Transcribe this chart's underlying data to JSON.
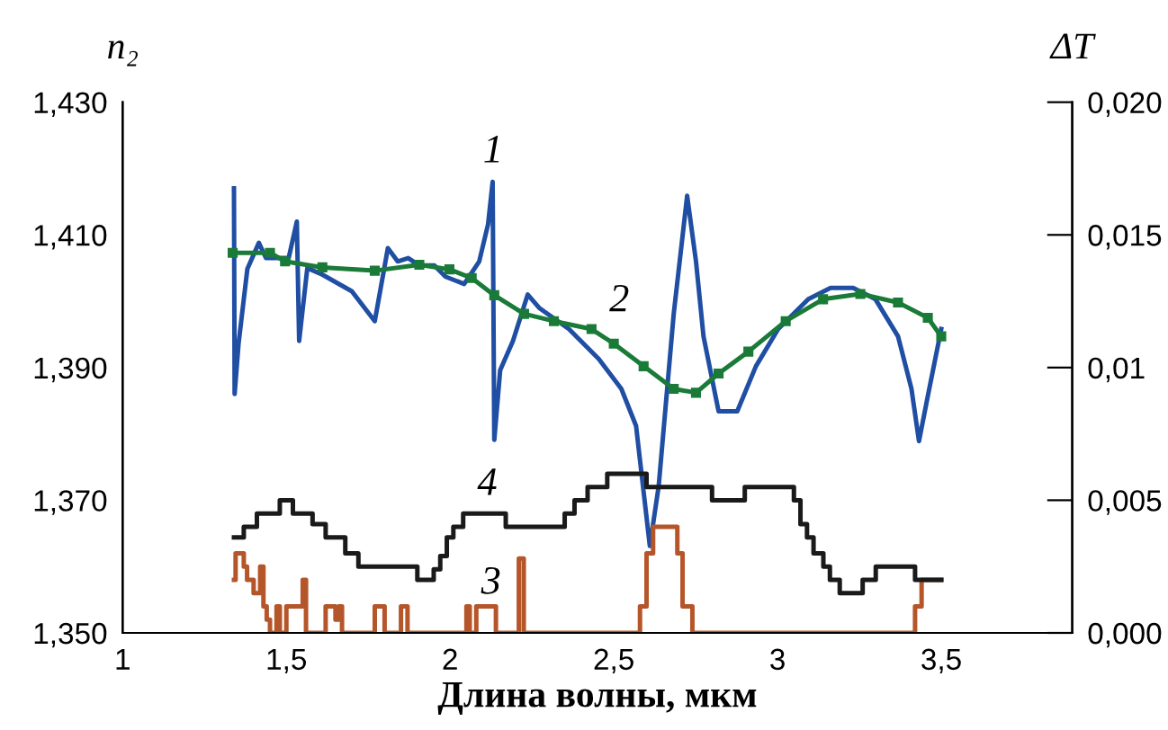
{
  "chart_data": {
    "type": "line",
    "xlabel": "Длина волны, мкм",
    "ylabel": "n₂",
    "y2label": "ΔT",
    "xlim": [
      1,
      3.9
    ],
    "xticks": [
      1,
      {
        "value": 1.5,
        "label": "1,5"
      },
      2,
      {
        "value": 2.5,
        "label": "2,5"
      },
      3,
      {
        "value": 3.5,
        "label": "3,5"
      }
    ],
    "ylim": [
      1.35,
      1.43
    ],
    "yticks": [
      {
        "value": 1.35,
        "label": "1,350"
      },
      {
        "value": 1.37,
        "label": "1,370"
      },
      {
        "value": 1.39,
        "label": "1,390"
      },
      {
        "value": 1.41,
        "label": "1,410"
      },
      {
        "value": 1.43,
        "label": "1,430"
      }
    ],
    "y2lim": [
      0,
      0.02
    ],
    "y2ticks": [
      {
        "value": 0,
        "label": "0,000"
      },
      {
        "value": 0.005,
        "label": "0,005"
      },
      {
        "value": 0.01,
        "label": "0,01"
      },
      {
        "value": 0.015,
        "label": "0,015"
      },
      {
        "value": 0.02,
        "label": "0,020"
      }
    ],
    "grid": false,
    "legend": false,
    "series": [
      {
        "name": "1",
        "color": "#1f4ea3",
        "x": [
          1.34,
          1.342,
          1.354,
          1.381,
          1.416,
          1.438,
          1.507,
          1.532,
          1.539,
          1.564,
          1.61,
          1.7,
          1.77,
          1.81,
          1.84,
          1.872,
          1.906,
          1.952,
          1.986,
          2.043,
          2.089,
          2.116,
          2.13,
          2.135,
          2.153,
          2.192,
          2.237,
          2.272,
          2.363,
          2.454,
          2.523,
          2.568,
          2.61,
          2.637,
          2.683,
          2.724,
          2.751,
          2.774,
          2.82,
          2.877,
          2.934,
          3.002,
          3.094,
          3.162,
          3.231,
          3.299,
          3.368,
          3.409,
          3.432,
          3.459,
          3.5
        ],
        "values": [
          1.417,
          1.386,
          1.3936,
          1.4049,
          1.4088,
          1.4065,
          1.4065,
          1.412,
          1.394,
          1.405,
          1.404,
          1.4015,
          1.397,
          1.408,
          1.406,
          1.4065,
          1.4054,
          1.4054,
          1.4037,
          1.4026,
          1.406,
          1.4116,
          1.418,
          1.3791,
          1.3896,
          1.394,
          1.401,
          1.399,
          1.3958,
          1.3913,
          1.3868,
          1.3812,
          1.3631,
          1.3721,
          1.3981,
          1.4159,
          1.406,
          1.3947,
          1.3834,
          1.3834,
          1.3902,
          1.3958,
          1.4003,
          1.402,
          1.402,
          1.4003,
          1.3947,
          1.3868,
          1.3789,
          1.3857,
          1.3958
        ]
      },
      {
        "name": "2",
        "color": "#1a7a38",
        "marker": "square",
        "x": [
          1.336,
          1.45,
          1.496,
          1.61,
          1.77,
          1.906,
          1.998,
          2.066,
          2.135,
          2.226,
          2.317,
          2.432,
          2.5,
          2.591,
          2.683,
          2.751,
          2.82,
          2.911,
          3.025,
          3.139,
          3.253,
          3.368,
          3.459,
          3.5
        ],
        "values": [
          1.4073,
          1.4073,
          1.406,
          1.4051,
          1.4046,
          1.4055,
          1.4048,
          1.4035,
          1.4009,
          1.3981,
          1.397,
          1.3958,
          1.3936,
          1.3902,
          1.3868,
          1.3862,
          1.3891,
          1.3924,
          1.397,
          1.4003,
          1.4011,
          1.3998,
          1.3975,
          1.3947
        ]
      },
      {
        "name": "3",
        "color": "#b5562a",
        "type": "step",
        "axis": "y2",
        "x": [
          1.34,
          1.345,
          1.37,
          1.38,
          1.4,
          1.42,
          1.43,
          1.44,
          1.45,
          1.47,
          1.48,
          1.5,
          1.55,
          1.56,
          1.62,
          1.65,
          1.66,
          1.67,
          1.77,
          1.8,
          1.85,
          1.87,
          2.05,
          2.06,
          2.08,
          2.14,
          2.21,
          2.225,
          2.58,
          2.6,
          2.62,
          2.694,
          2.71,
          2.74,
          3.42,
          3.44,
          3.5
        ],
        "values": [
          0.002,
          0.003,
          0.0025,
          0.002,
          0.0015,
          0.0025,
          0.001,
          0.0005,
          0,
          0.001,
          0,
          0.001,
          0.002,
          0,
          0.001,
          0.0005,
          0.001,
          0,
          0.001,
          0,
          0.001,
          0,
          0.001,
          0,
          0.001,
          0,
          0.0028,
          0,
          0.001,
          0.003,
          0.004,
          0.003,
          0.001,
          0,
          0.001,
          0.002,
          0.002
        ]
      },
      {
        "name": "4",
        "color": "#1a1a1a",
        "type": "step",
        "axis": "y2",
        "x": [
          1.34,
          1.37,
          1.41,
          1.48,
          1.52,
          1.58,
          1.62,
          1.68,
          1.72,
          1.9,
          1.95,
          1.97,
          1.99,
          2.01,
          2.04,
          2.17,
          2.35,
          2.38,
          2.42,
          2.48,
          2.6,
          2.8,
          2.9,
          3.05,
          3.07,
          3.09,
          3.11,
          3.14,
          3.16,
          3.19,
          3.26,
          3.3,
          3.42,
          3.5
        ],
        "values": [
          0.0036,
          0.004,
          0.0045,
          0.005,
          0.0045,
          0.0041,
          0.0036,
          0.003,
          0.0025,
          0.002,
          0.0024,
          0.0029,
          0.0036,
          0.004,
          0.0045,
          0.004,
          0.0045,
          0.005,
          0.0055,
          0.006,
          0.0055,
          0.005,
          0.0055,
          0.005,
          0.0041,
          0.0036,
          0.003,
          0.0025,
          0.002,
          0.0015,
          0.002,
          0.0025,
          0.002,
          0.002
        ]
      }
    ]
  }
}
